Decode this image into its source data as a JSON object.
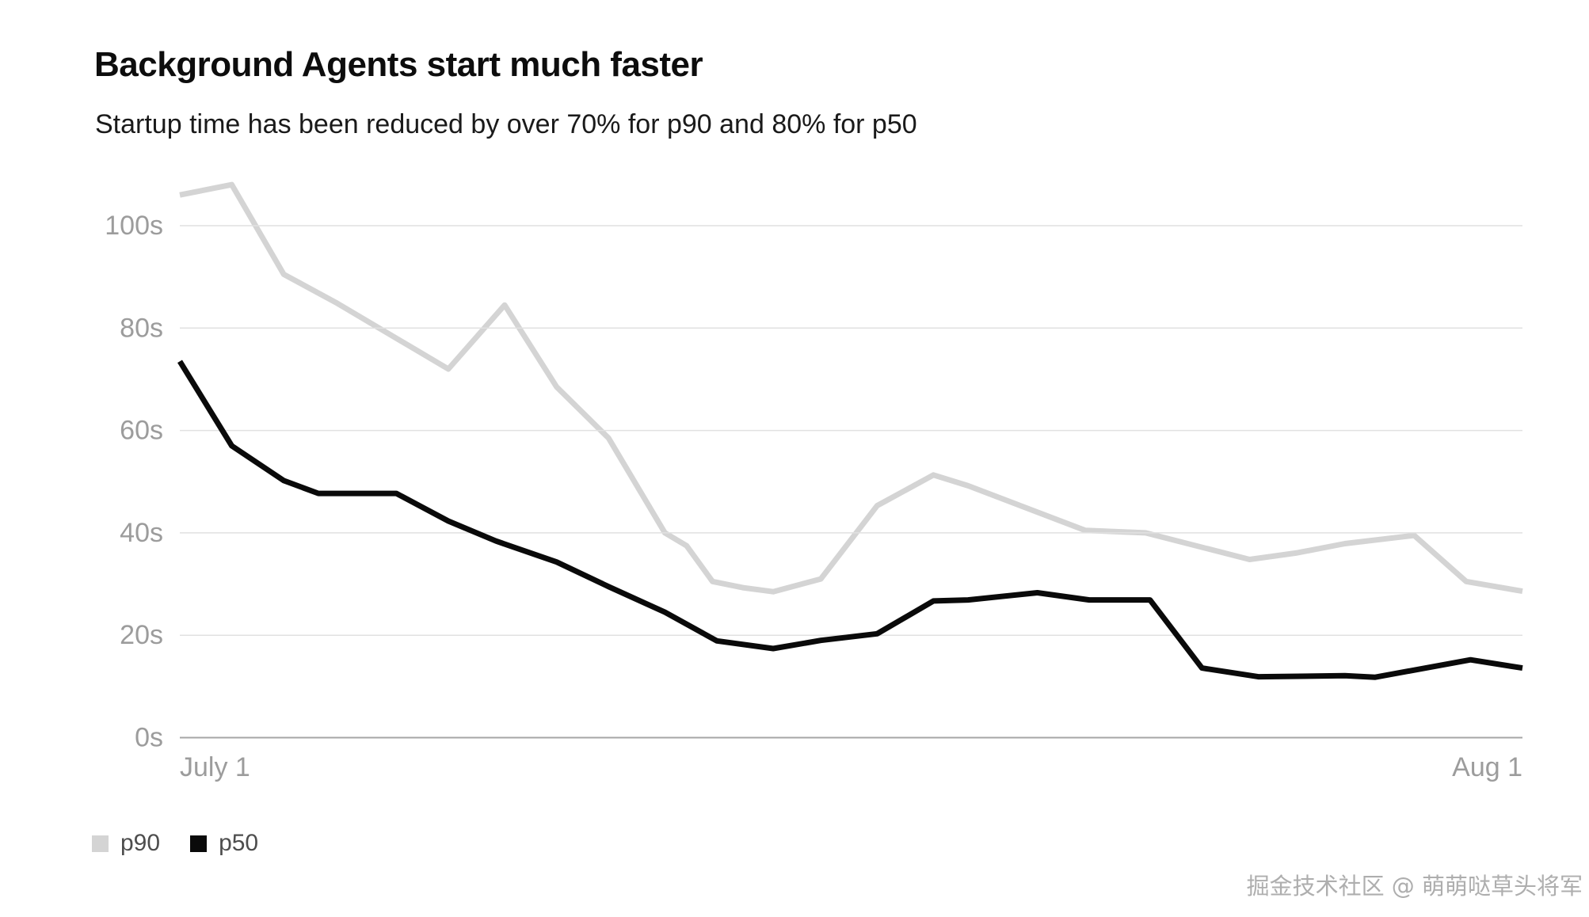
{
  "page": {
    "background": "#ffffff"
  },
  "header": {
    "title": "Background Agents start much faster",
    "subtitle": "Startup time has been reduced by over 70% for p90 and 80% for p50"
  },
  "chart_data": {
    "type": "line",
    "title": "Background Agents start much faster",
    "subtitle": "Startup time has been reduced by over 70% for p90 and 80% for p50",
    "unit": "seconds",
    "grid": true,
    "x_axis": {
      "tick_labels": [
        "July 1",
        "Aug 1"
      ],
      "range_days": [
        0,
        31
      ]
    },
    "y_axis": {
      "tick_labels": [
        "0s",
        "20s",
        "40s",
        "60s",
        "80s",
        "100s"
      ],
      "tick_values": [
        0,
        20,
        40,
        60,
        80,
        100
      ],
      "ylim": [
        0,
        112
      ]
    },
    "legend": {
      "position": "bottom-left",
      "entries": [
        {
          "label": "p90",
          "color": "#d4d4d4"
        },
        {
          "label": "p50",
          "color": "#0a0a0a"
        }
      ]
    },
    "series": [
      {
        "name": "p90",
        "color": "#d4d4d4",
        "points": [
          [
            0,
            106
          ],
          [
            1.2,
            108
          ],
          [
            2.4,
            90.5
          ],
          [
            3.6,
            85
          ],
          [
            5.3,
            76.5
          ],
          [
            6.2,
            72
          ],
          [
            7.5,
            84.5
          ],
          [
            8.7,
            68.5
          ],
          [
            9.9,
            58.5
          ],
          [
            11.2,
            40
          ],
          [
            11.7,
            37.5
          ],
          [
            12.3,
            30.5
          ],
          [
            13,
            29.3
          ],
          [
            13.7,
            28.5
          ],
          [
            14.8,
            31
          ],
          [
            16.1,
            45.3
          ],
          [
            17.4,
            51.3
          ],
          [
            18.2,
            49.2
          ],
          [
            20.9,
            40.5
          ],
          [
            22.3,
            40
          ],
          [
            24.7,
            34.8
          ],
          [
            25.8,
            36.1
          ],
          [
            26.9,
            37.9
          ],
          [
            28.5,
            39.5
          ],
          [
            29.7,
            30.5
          ],
          [
            31,
            28.6
          ]
        ]
      },
      {
        "name": "p50",
        "color": "#0a0a0a",
        "points": [
          [
            0,
            73.5
          ],
          [
            1.2,
            57
          ],
          [
            2.4,
            50.2
          ],
          [
            3.2,
            47.7
          ],
          [
            5,
            47.7
          ],
          [
            6.2,
            42.3
          ],
          [
            7.3,
            38.4
          ],
          [
            8.7,
            34.3
          ],
          [
            9.9,
            29.5
          ],
          [
            11.2,
            24.5
          ],
          [
            12.4,
            18.9
          ],
          [
            13.7,
            17.4
          ],
          [
            14.8,
            19
          ],
          [
            16.1,
            20.3
          ],
          [
            17.4,
            26.7
          ],
          [
            18.2,
            26.9
          ],
          [
            19.8,
            28.3
          ],
          [
            21,
            26.9
          ],
          [
            22.4,
            26.9
          ],
          [
            23.6,
            13.6
          ],
          [
            24.9,
            11.9
          ],
          [
            26.9,
            12.1
          ],
          [
            27.6,
            11.8
          ],
          [
            29.8,
            15.2
          ],
          [
            31,
            13.6
          ]
        ]
      }
    ]
  },
  "colors": {
    "grid": "#e1e1e1",
    "axis": "#a6a6a6",
    "tick_text": "#9c9c9c",
    "title_text": "#0d0d0d",
    "legend_text": "#4d4d4d",
    "watermark_text": "#aeaeae"
  },
  "watermark": {
    "text": "掘金技术社区 @ 萌萌哒草头将军"
  }
}
